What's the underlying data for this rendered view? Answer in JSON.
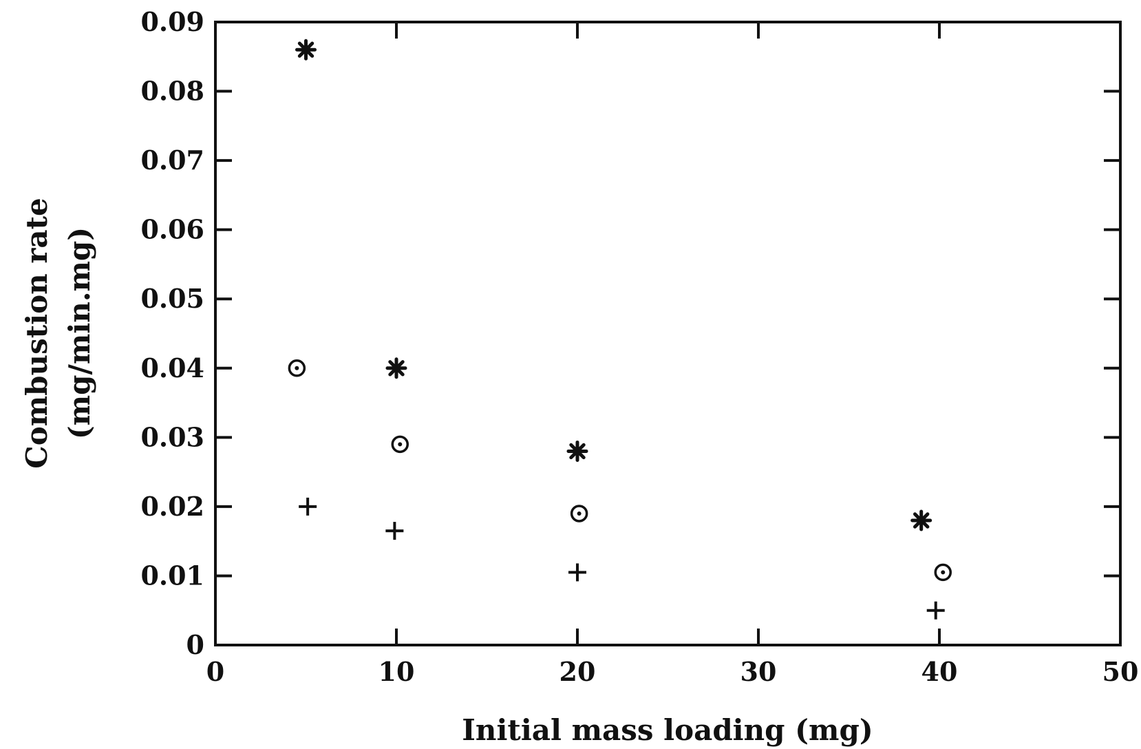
{
  "chart_data": {
    "type": "scatter",
    "title": "",
    "xlabel": "Initial mass loading (mg)",
    "ylabel_lines": [
      "Combustion rate",
      "(mg/min.mg)"
    ],
    "xlim": [
      0,
      50
    ],
    "ylim": [
      0,
      0.09
    ],
    "x_ticks": [
      0,
      10,
      20,
      30,
      40,
      50
    ],
    "y_ticks": [
      0,
      0.01,
      0.02,
      0.03,
      0.04,
      0.05,
      0.06,
      0.07,
      0.08,
      0.09
    ],
    "x_tick_labels": [
      "0",
      "10",
      "20",
      "30",
      "40",
      "50"
    ],
    "y_tick_labels": [
      "0",
      "0.01",
      "0.02",
      "0.03",
      "0.04",
      "0.05",
      "0.06",
      "0.07",
      "0.08",
      "0.09"
    ],
    "grid": false,
    "legend": "none",
    "series": [
      {
        "name": "asterisk",
        "marker": "asterisk",
        "points": [
          {
            "x": 5,
            "y": 0.086
          },
          {
            "x": 10,
            "y": 0.04
          },
          {
            "x": 20,
            "y": 0.028
          },
          {
            "x": 39,
            "y": 0.018
          }
        ]
      },
      {
        "name": "dotted-circle",
        "marker": "circle-dot",
        "points": [
          {
            "x": 4.5,
            "y": 0.04
          },
          {
            "x": 10.2,
            "y": 0.029
          },
          {
            "x": 20.1,
            "y": 0.019
          },
          {
            "x": 40.2,
            "y": 0.0105
          }
        ]
      },
      {
        "name": "plus",
        "marker": "plus",
        "points": [
          {
            "x": 5.1,
            "y": 0.02
          },
          {
            "x": 9.9,
            "y": 0.0165
          },
          {
            "x": 20,
            "y": 0.0105
          },
          {
            "x": 39.8,
            "y": 0.005
          }
        ]
      }
    ]
  }
}
